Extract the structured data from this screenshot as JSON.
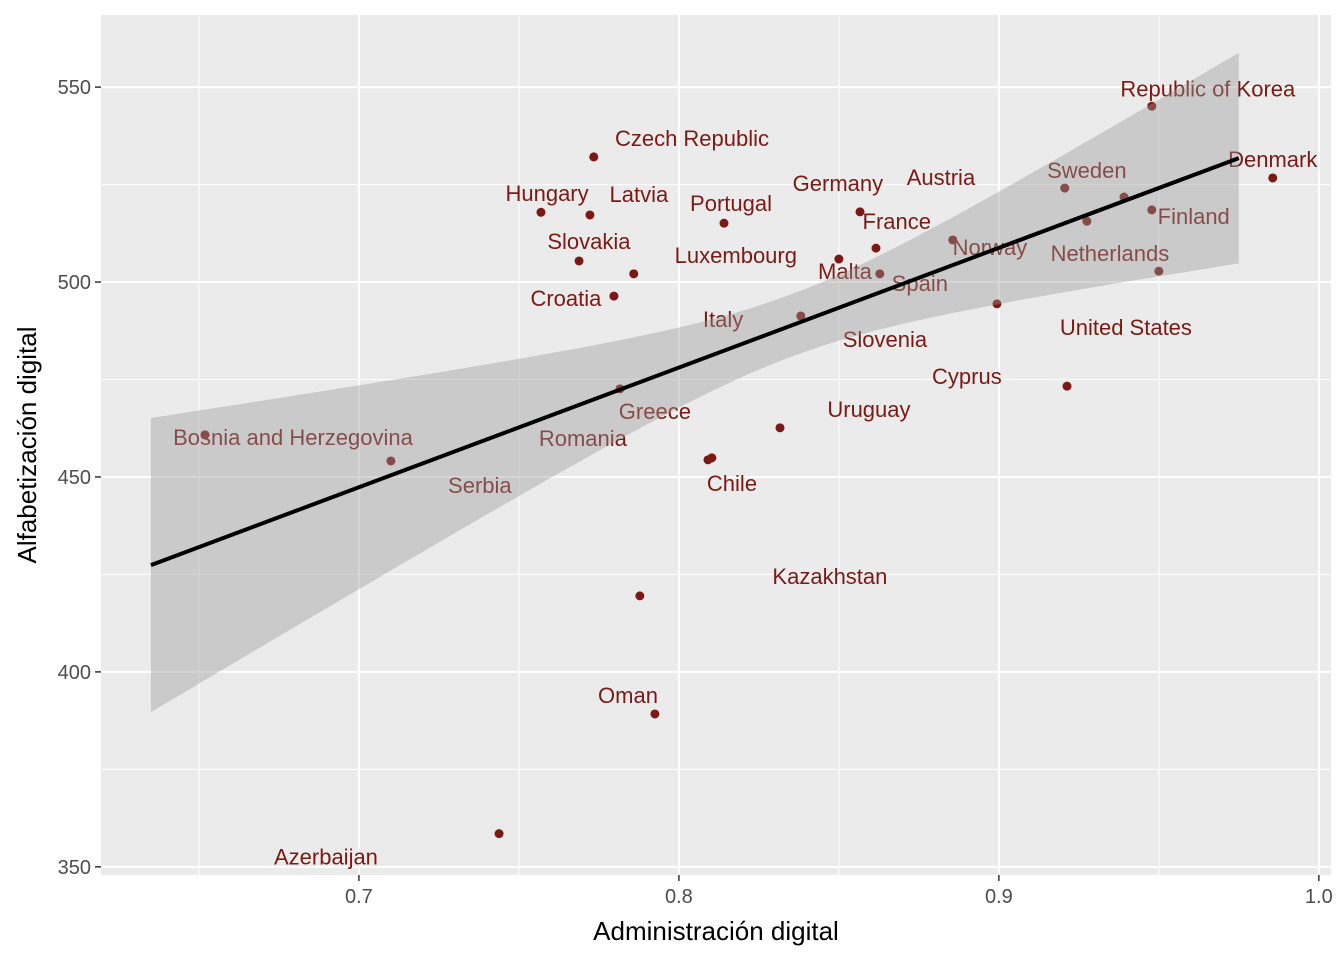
{
  "chart_data": {
    "type": "scatter",
    "title": "",
    "xlabel": "Administración digital",
    "ylabel": "Alfabetización digital",
    "xlim": [
      0.6194,
      1.0038
    ],
    "ylim": [
      347.9,
      568.5
    ],
    "xticks": [
      0.7,
      0.8,
      0.9,
      1.0
    ],
    "xtick_labels": [
      "0.7",
      "0.8",
      "0.9",
      "1.0"
    ],
    "yticks": [
      350,
      400,
      450,
      500,
      550
    ],
    "ytick_labels": [
      "350",
      "400",
      "450",
      "500",
      "550"
    ],
    "grid": true,
    "point_color": "#7B1A14",
    "fit": {
      "method": "linear",
      "x_range": [
        0.635,
        0.975
      ],
      "y_at_start": 427.4,
      "y_at_end": 531.8,
      "ci_center_x": 0.835,
      "ci_min_halfwidth": 8,
      "ci_curvature": 34000
    },
    "points": [
      {
        "name": "Republic of Korea",
        "x": 0.9478,
        "y": 545.1,
        "label_x": 0.9653,
        "label_y": 549.7
      },
      {
        "name": "Denmark",
        "x": 0.9856,
        "y": 526.7,
        "label_x": 0.9856,
        "label_y": 531.5
      },
      {
        "name": "Sweden",
        "x": 0.9206,
        "y": 524.1,
        "label_x": 0.9275,
        "label_y": 528.7
      },
      {
        "name": "Austria",
        "x": 0.9391,
        "y": 521.8,
        "label_x": 0.8819,
        "label_y": 526.9
      },
      {
        "name": "Finland",
        "x": 0.9478,
        "y": 518.5,
        "label_x": 0.9609,
        "label_y": 516.9
      },
      {
        "name": "Netherlands",
        "x": 0.9275,
        "y": 515.6,
        "label_x": 0.9347,
        "label_y": 507.4
      },
      {
        "name": "Norway",
        "x": 0.8856,
        "y": 510.8,
        "label_x": 0.8972,
        "label_y": 509.0
      },
      {
        "name": "United States",
        "x": 0.95,
        "y": 502.8,
        "label_x": 0.9397,
        "label_y": 488.5
      },
      {
        "name": "Slovenia",
        "x": 0.8994,
        "y": 494.4,
        "label_x": 0.8644,
        "label_y": 485.4
      },
      {
        "name": "Cyprus",
        "x": 0.9213,
        "y": 473.3,
        "label_x": 0.89,
        "label_y": 475.9
      },
      {
        "name": "Germany",
        "x": 0.8566,
        "y": 518.0,
        "label_x": 0.8497,
        "label_y": 525.4
      },
      {
        "name": "France",
        "x": 0.8616,
        "y": 508.7,
        "label_x": 0.8681,
        "label_y": 515.6
      },
      {
        "name": "Malta",
        "x": 0.85,
        "y": 505.9,
        "label_x": 0.8519,
        "label_y": 502.8
      },
      {
        "name": "Spain",
        "x": 0.8628,
        "y": 502.1,
        "label_x": 0.8753,
        "label_y": 499.7
      },
      {
        "name": "Italy",
        "x": 0.8381,
        "y": 491.3,
        "label_x": 0.8138,
        "label_y": 490.5
      },
      {
        "name": "Portugal",
        "x": 0.8141,
        "y": 515.1,
        "label_x": 0.8163,
        "label_y": 520.3
      },
      {
        "name": "Czech Republic",
        "x": 0.7734,
        "y": 532.1,
        "label_x": 0.8041,
        "label_y": 536.9
      },
      {
        "name": "Hungary",
        "x": 0.7569,
        "y": 517.9,
        "label_x": 0.7588,
        "label_y": 522.8
      },
      {
        "name": "Latvia",
        "x": 0.7722,
        "y": 517.2,
        "label_x": 0.7875,
        "label_y": 522.6
      },
      {
        "name": "Slovakia",
        "x": 0.7688,
        "y": 505.4,
        "label_x": 0.7719,
        "label_y": 510.5
      },
      {
        "name": "Luxembourg",
        "x": 0.7859,
        "y": 502.1,
        "label_x": 0.8178,
        "label_y": 506.9
      },
      {
        "name": "Croatia",
        "x": 0.7797,
        "y": 496.4,
        "label_x": 0.7647,
        "label_y": 495.9
      },
      {
        "name": "Greece",
        "x": 0.7816,
        "y": 472.6,
        "label_x": 0.7925,
        "label_y": 466.9
      },
      {
        "name": "Bosnia and Herzegovina",
        "x": 0.6519,
        "y": 460.8,
        "label_x": 0.6794,
        "label_y": 460.3
      },
      {
        "name": "Serbia",
        "x": 0.71,
        "y": 454.1,
        "label_x": 0.7378,
        "label_y": 448.0
      },
      {
        "name": "Romania",
        "x": 0.8091,
        "y": 454.4,
        "label_x": 0.77,
        "label_y": 460.0
      },
      {
        "name": "Chile",
        "x": 0.8103,
        "y": 454.9,
        "label_x": 0.8166,
        "label_y": 448.5
      },
      {
        "name": "Uruguay",
        "x": 0.8316,
        "y": 462.6,
        "label_x": 0.8594,
        "label_y": 467.4
      },
      {
        "name": "Kazakhstan",
        "x": 0.7878,
        "y": 419.5,
        "label_x": 0.8472,
        "label_y": 424.6
      },
      {
        "name": "Oman",
        "x": 0.7925,
        "y": 389.2,
        "label_x": 0.7841,
        "label_y": 394.1
      },
      {
        "name": "Azerbaijan",
        "x": 0.7438,
        "y": 358.5,
        "label_x": 0.6897,
        "label_y": 352.6
      }
    ]
  }
}
